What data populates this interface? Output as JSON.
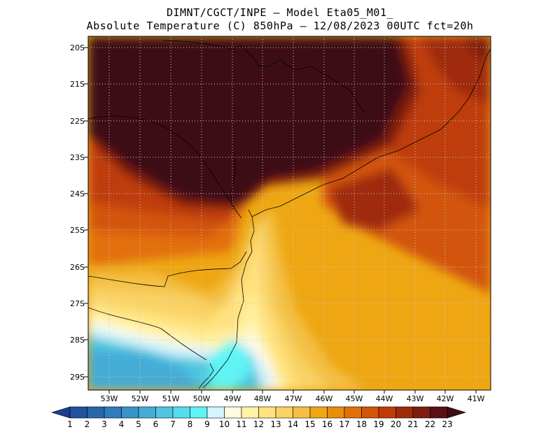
{
  "title_line1": "DIMNT/CGCT/INPE —  Model Eta05_M01_",
  "title_line2": "Absolute Temperature (C) 850hPa —  12/08/2023 00UTC fct=20h",
  "map": {
    "lat_labels": [
      "20S",
      "21S",
      "22S",
      "23S",
      "24S",
      "25S",
      "26S",
      "27S",
      "28S",
      "29S"
    ],
    "lon_labels": [
      "53W",
      "52W",
      "51W",
      "50W",
      "49W",
      "48W",
      "47W",
      "46W",
      "45W",
      "44W",
      "43W",
      "42W",
      "41W"
    ]
  },
  "colorbar": {
    "labels": [
      "1",
      "2",
      "3",
      "4",
      "5",
      "6",
      "7",
      "8",
      "9",
      "10",
      "11",
      "12",
      "13",
      "14",
      "15",
      "16",
      "17",
      "18",
      "19",
      "20",
      "21",
      "22",
      "23"
    ],
    "colors": [
      "#1c3d94",
      "#21519f",
      "#2666ac",
      "#2e7cbb",
      "#3a93c8",
      "#45acd5",
      "#4ec6e1",
      "#56dcea",
      "#5ef4f4",
      "#d4f3fb",
      "#fff9e2",
      "#fff2a6",
      "#ffe27f",
      "#f9d264",
      "#f4bf45",
      "#eea713",
      "#e98e0a",
      "#e27009",
      "#d35509",
      "#bf3c07",
      "#9f2b0b",
      "#7f1d0f",
      "#5d0f18",
      "#3c0d15"
    ]
  }
}
